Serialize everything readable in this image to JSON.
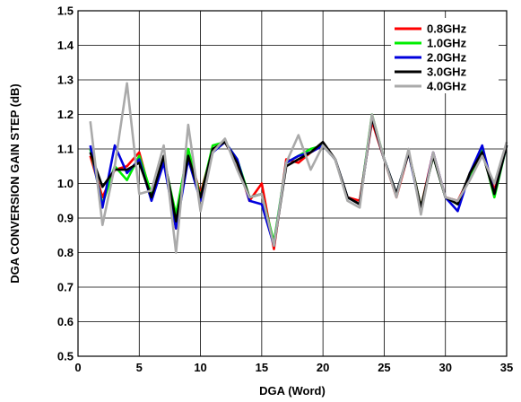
{
  "chart_data": {
    "type": "line",
    "title": "",
    "xlabel": "DGA (Word)",
    "ylabel": "DGA CONVERSION GAIN STEP (dB)",
    "xlim": [
      0,
      35
    ],
    "ylim": [
      0.5,
      1.5
    ],
    "xticks": [
      0,
      5,
      10,
      15,
      20,
      25,
      30,
      35
    ],
    "yticks": [
      0.5,
      0.6,
      0.7,
      0.8,
      0.9,
      1.0,
      1.1,
      1.2,
      1.3,
      1.4,
      1.5
    ],
    "grid": true,
    "legend_position": "top-right",
    "x": [
      1,
      2,
      3,
      4,
      5,
      6,
      7,
      8,
      9,
      10,
      11,
      12,
      13,
      14,
      15,
      16,
      17,
      18,
      19,
      20,
      21,
      22,
      23,
      24,
      25,
      26,
      27,
      28,
      29,
      30,
      31,
      32,
      33,
      34,
      35
    ],
    "series": [
      {
        "name": "0.8GHz",
        "color": "#ff0000",
        "values": [
          1.08,
          0.96,
          1.04,
          1.05,
          1.09,
          0.96,
          1.07,
          0.87,
          1.09,
          0.97,
          1.1,
          1.12,
          1.06,
          0.95,
          1.0,
          0.81,
          1.07,
          1.06,
          1.09,
          1.11,
          1.07,
          0.96,
          0.95,
          1.18,
          1.07,
          0.96,
          1.09,
          0.93,
          1.09,
          0.96,
          0.95,
          1.02,
          1.1,
          0.98,
          1.11
        ]
      },
      {
        "name": "1.0GHz",
        "color": "#00ee00",
        "values": [
          1.1,
          0.94,
          1.05,
          1.01,
          1.08,
          0.97,
          1.07,
          0.91,
          1.1,
          0.96,
          1.11,
          1.12,
          1.07,
          0.96,
          0.97,
          0.83,
          1.06,
          1.08,
          1.1,
          1.11,
          1.07,
          0.96,
          0.94,
          1.2,
          1.07,
          0.97,
          1.09,
          0.93,
          1.08,
          0.96,
          0.94,
          1.02,
          1.1,
          0.96,
          1.11
        ]
      },
      {
        "name": "2.0GHz",
        "color": "#0000dd",
        "values": [
          1.11,
          0.93,
          1.11,
          1.03,
          1.07,
          0.95,
          1.06,
          0.87,
          1.07,
          0.95,
          1.09,
          1.12,
          1.07,
          0.95,
          0.94,
          0.82,
          1.06,
          1.08,
          1.09,
          1.11,
          1.07,
          0.96,
          0.94,
          1.19,
          1.07,
          0.97,
          1.09,
          0.92,
          1.09,
          0.96,
          0.92,
          1.03,
          1.11,
          0.97,
          1.11
        ]
      },
      {
        "name": "3.0GHz",
        "color": "#000000",
        "values": [
          1.09,
          0.99,
          1.04,
          1.04,
          1.06,
          0.96,
          1.08,
          0.89,
          1.08,
          0.96,
          1.1,
          1.12,
          1.06,
          0.96,
          0.97,
          0.82,
          1.05,
          1.07,
          1.09,
          1.12,
          1.07,
          0.96,
          0.94,
          1.19,
          1.07,
          0.97,
          1.09,
          0.93,
          1.08,
          0.96,
          0.94,
          1.03,
          1.09,
          0.97,
          1.11
        ]
      },
      {
        "name": "4.0GHz",
        "color": "#aaaaaa",
        "values": [
          1.18,
          0.88,
          1.05,
          1.29,
          0.97,
          0.98,
          1.11,
          0.8,
          1.17,
          0.92,
          1.09,
          1.13,
          1.04,
          0.96,
          0.97,
          0.82,
          1.06,
          1.14,
          1.04,
          1.11,
          1.07,
          0.95,
          0.93,
          1.2,
          1.07,
          0.96,
          1.1,
          0.91,
          1.09,
          0.96,
          0.95,
          1.01,
          1.08,
          1.0,
          1.12
        ]
      }
    ]
  }
}
